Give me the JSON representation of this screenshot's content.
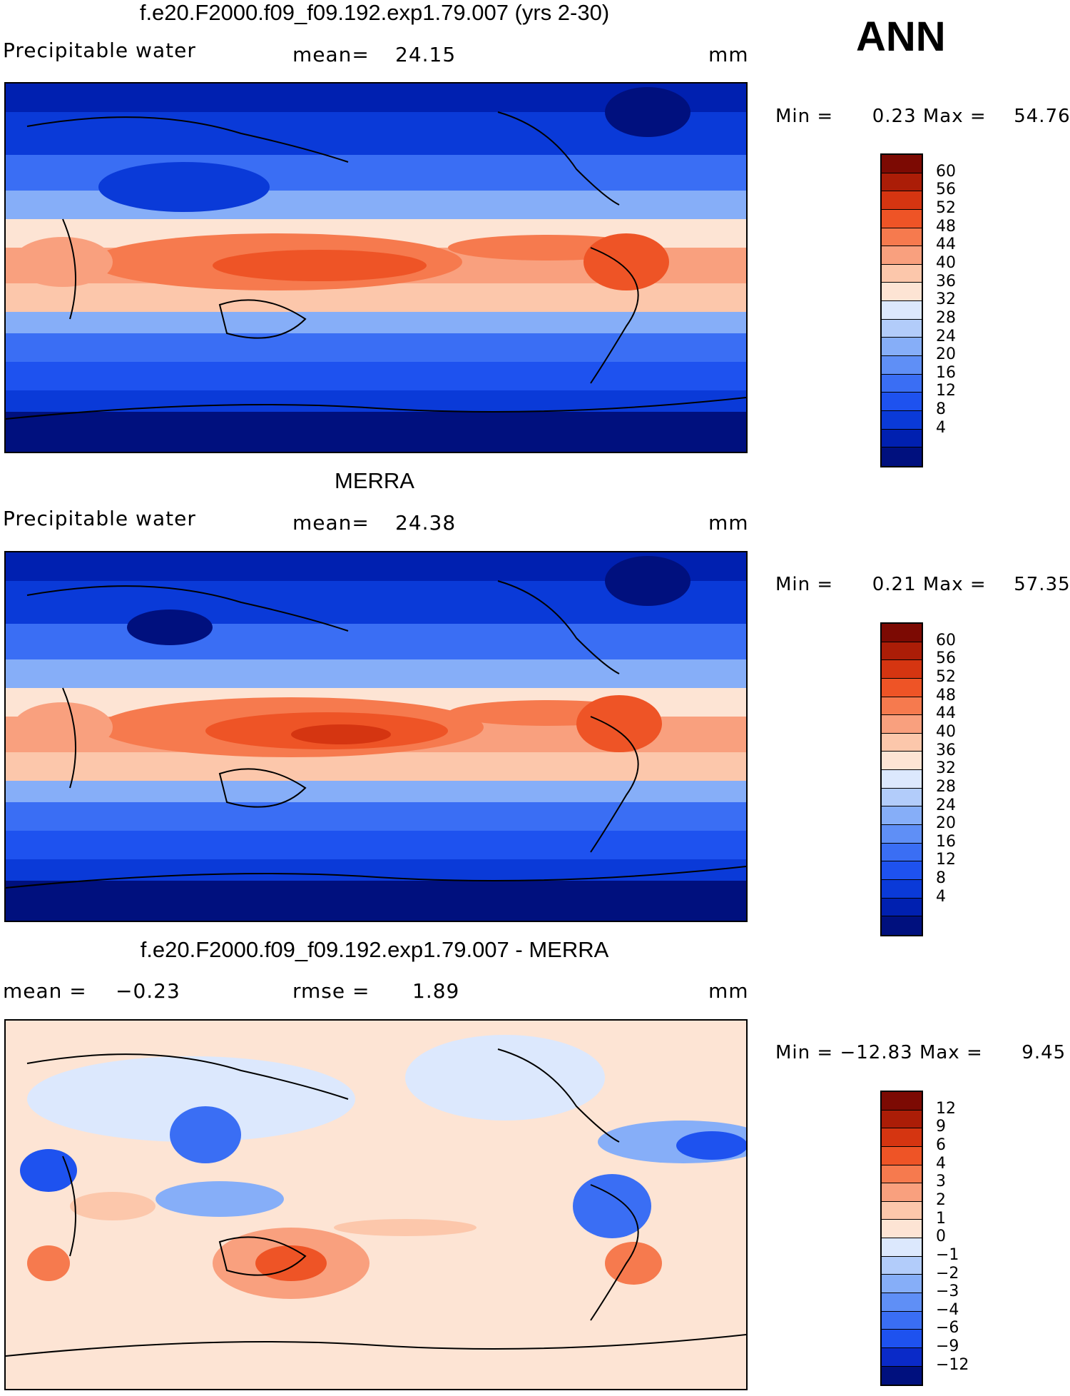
{
  "season": "ANN",
  "colors": {
    "pw_scale": [
      "#00107e",
      "#0020b0",
      "#0a3ad8",
      "#1e52ef",
      "#3a6ef4",
      "#5f8ff6",
      "#86aef8",
      "#b2ccfa",
      "#dce8fd",
      "#fde4d4",
      "#fcc7ab",
      "#f9a07e",
      "#f67a4e",
      "#ee5426",
      "#d53511",
      "#ab1d07",
      "#7c0a03"
    ],
    "diff_scale": [
      "#00107e",
      "#0a2ac8",
      "#1e52ef",
      "#3a6ef4",
      "#5f8ff6",
      "#86aef8",
      "#b2ccfa",
      "#dce8fd",
      "#fde4d4",
      "#fcc7ab",
      "#f9a07e",
      "#f67a4e",
      "#ee5426",
      "#d53511",
      "#ab1d07",
      "#7c0a03"
    ],
    "coastline": "#000000"
  },
  "panels": [
    {
      "title": "f.e20.F2000.f09_f09.192.exp1.79.007 (yrs 2-30)",
      "left_label": "Precipitable  water",
      "center_label": "mean=",
      "center_value": "24.15",
      "units": "mm",
      "min_label": "Min  =",
      "min_value": "0.23",
      "max_label": "Max  =",
      "max_value": "54.76",
      "colorbar_labels": [
        "60",
        "56",
        "52",
        "48",
        "44",
        "40",
        "36",
        "32",
        "28",
        "24",
        "20",
        "16",
        "12",
        "8",
        "4"
      ]
    },
    {
      "title": "MERRA",
      "left_label": "Precipitable  water",
      "center_label": "mean=",
      "center_value": "24.38",
      "units": "mm",
      "min_label": "Min  =",
      "min_value": "0.21",
      "max_label": "Max  =",
      "max_value": "57.35",
      "colorbar_labels": [
        "60",
        "56",
        "52",
        "48",
        "44",
        "40",
        "36",
        "32",
        "28",
        "24",
        "20",
        "16",
        "12",
        "8",
        "4"
      ]
    },
    {
      "title": "f.e20.F2000.f09_f09.192.exp1.79.007 - MERRA",
      "left_label": "mean  =",
      "left_value": "−0.23",
      "center_label": "rmse  =",
      "center_value": "1.89",
      "units": "mm",
      "min_label": "Min  =",
      "min_value": "−12.83",
      "max_label": "Max  =",
      "max_value": "9.45",
      "colorbar_labels": [
        "12",
        "9",
        "6",
        "4",
        "3",
        "2",
        "1",
        "0",
        "−1",
        "−2",
        "−3",
        "−4",
        "−6",
        "−9",
        "−12"
      ]
    }
  ]
}
